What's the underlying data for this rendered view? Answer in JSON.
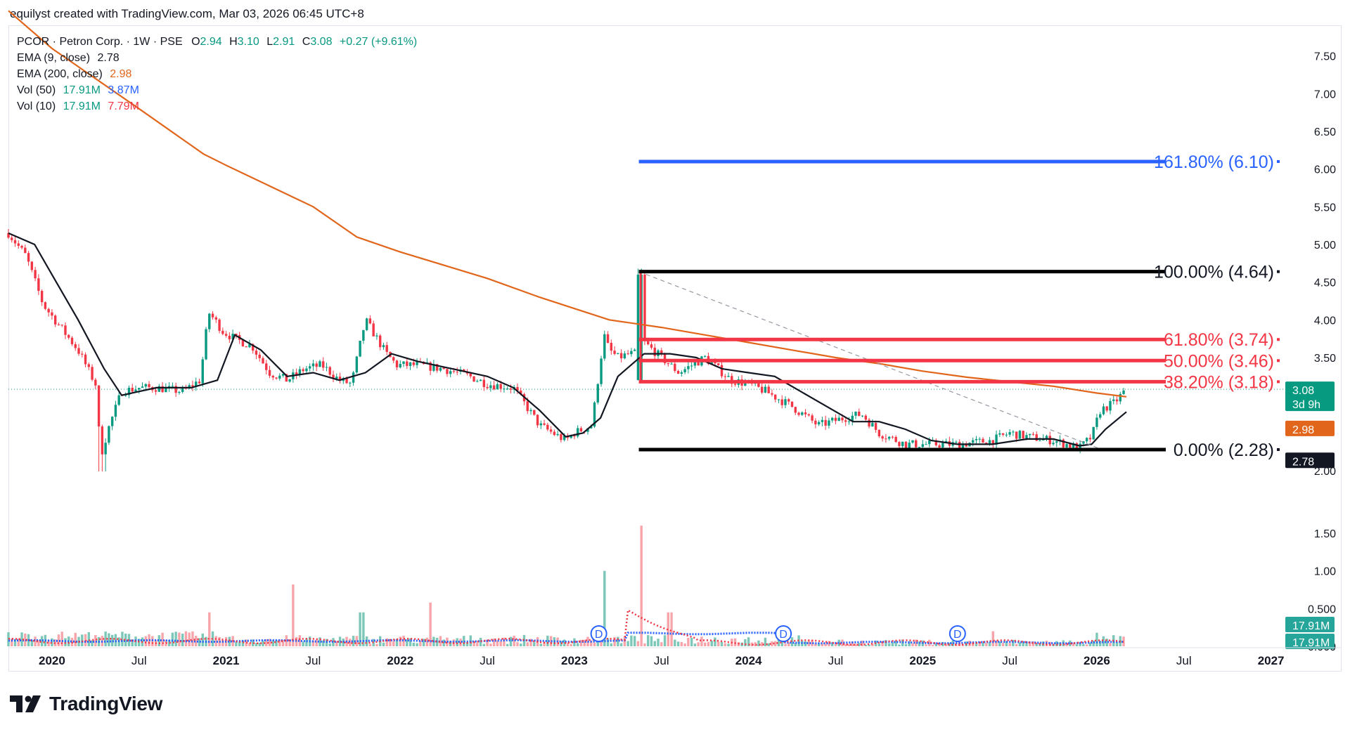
{
  "header": {
    "attribution": "equilyst created with TradingView.com, Mar 03, 2026 06:45 UTC+8"
  },
  "legend": {
    "symbol": "PCOR · Petron Corp. · 1W · PSE",
    "o_label": "O",
    "o_val": "2.94",
    "h_label": "H",
    "h_val": "3.10",
    "l_label": "L",
    "l_val": "2.91",
    "c_label": "C",
    "c_val": "3.08",
    "change": "+0.27 (+9.61%)",
    "ema9_label": "EMA (9, close)",
    "ema9_val": "2.78",
    "ema200_label": "EMA (200, close)",
    "ema200_val": "2.98",
    "vol50_label": "Vol (50)",
    "vol50_a": "17.91M",
    "vol50_b": "3.87M",
    "vol10_label": "Vol (10)",
    "vol10_a": "17.91M",
    "vol10_b": "7.79M"
  },
  "price_axis": {
    "ticks": [
      "7.50",
      "7.00",
      "6.50",
      "6.00",
      "5.50",
      "5.00",
      "4.50",
      "4.00",
      "3.50",
      "2.00",
      "1.50",
      "1.00",
      "0.500",
      "0.000"
    ],
    "tick_values": [
      7.5,
      7.0,
      6.5,
      6.0,
      5.5,
      5.0,
      4.5,
      4.0,
      3.5,
      2.0,
      1.5,
      1.0,
      0.5,
      0.0
    ]
  },
  "badges": {
    "price": "3.08",
    "countdown": "3d 9h",
    "ema200": "2.98",
    "ema9": "2.78",
    "vol_a": "17.91M",
    "vol_b": "17.91M"
  },
  "time_axis": {
    "labels": [
      "2020",
      "Jul",
      "2021",
      "Jul",
      "2022",
      "Jul",
      "2023",
      "Jul",
      "2024",
      "Jul",
      "2025",
      "Jul",
      "2026",
      "Jul",
      "2027"
    ],
    "bold": [
      true,
      false,
      true,
      false,
      true,
      false,
      true,
      false,
      true,
      false,
      true,
      false,
      true,
      false,
      true
    ],
    "dates": [
      2020.0,
      2020.5,
      2021.0,
      2021.5,
      2022.0,
      2022.5,
      2023.0,
      2023.5,
      2024.0,
      2024.5,
      2025.0,
      2025.5,
      2026.0,
      2026.5,
      2027.0
    ]
  },
  "fib_levels": [
    {
      "label": "161.80% (6.10)",
      "value": 6.1,
      "color": "#2962ff"
    },
    {
      "label": "100.00% (4.64)",
      "value": 4.64,
      "color": "#000000"
    },
    {
      "label": "61.80% (3.74)",
      "value": 3.74,
      "color": "#f23645"
    },
    {
      "label": "50.00% (3.46)",
      "value": 3.46,
      "color": "#f23645"
    },
    {
      "label": "38.20% (3.18)",
      "value": 3.18,
      "color": "#f23645"
    },
    {
      "label": "0.00% (2.28)",
      "value": 2.28,
      "color": "#000000"
    }
  ],
  "dividend_markers": {
    "label": "D",
    "dates": [
      2023.14,
      2024.2,
      2025.2
    ]
  },
  "brand": {
    "name": "TradingView"
  },
  "colors": {
    "up": "#089981",
    "down": "#f23645",
    "ema9": "#131722",
    "ema200": "#e1661c",
    "vol50": "#2962ff",
    "vol10": "#f23645",
    "fib_blue": "#2962ff"
  },
  "chart_data": {
    "type": "candlestick",
    "title": "PCOR · Petron Corp. · 1W · PSE",
    "interval": "1W",
    "last_bar": {
      "open": 2.94,
      "high": 3.1,
      "low": 2.91,
      "close": 3.08,
      "change": 0.27,
      "change_pct": 9.61
    },
    "price_range": [
      1.77,
      7.78
    ],
    "close_path": {
      "x": [
        2019.75,
        2019.85,
        2019.95,
        2020.05,
        2020.15,
        2020.25,
        2020.28,
        2020.33,
        2020.4,
        2020.5,
        2020.6,
        2020.75,
        2020.85,
        2020.9,
        2020.95,
        2020.98,
        2021.05,
        2021.15,
        2021.25,
        2021.35,
        2021.45,
        2021.55,
        2021.65,
        2021.72,
        2021.8,
        2021.88,
        2021.92,
        2021.98,
        2022.1,
        2022.25,
        2022.4,
        2022.5,
        2022.65,
        2022.8,
        2022.95,
        2023.0,
        2023.1,
        2023.17,
        2023.2,
        2023.25,
        2023.32,
        2023.38,
        2023.4,
        2023.5,
        2023.6,
        2023.75,
        2023.9,
        2024.0,
        2024.1,
        2024.25,
        2024.4,
        2024.55,
        2024.65,
        2024.75,
        2024.9,
        2025.0,
        2025.2,
        2025.4,
        2025.5,
        2025.6,
        2025.75,
        2025.9,
        2025.97,
        2026.02,
        2026.1,
        2026.17
      ],
      "close": [
        5.15,
        4.85,
        4.2,
        3.9,
        3.6,
        3.15,
        2.2,
        2.6,
        3.05,
        3.1,
        3.1,
        3.05,
        3.2,
        4.1,
        3.95,
        3.85,
        3.75,
        3.65,
        3.3,
        3.2,
        3.35,
        3.4,
        3.2,
        3.15,
        4.0,
        3.7,
        3.55,
        3.4,
        3.4,
        3.35,
        3.25,
        3.15,
        3.1,
        2.6,
        2.4,
        2.5,
        2.6,
        3.8,
        3.6,
        3.5,
        3.55,
        3.55,
        3.7,
        3.5,
        3.3,
        3.5,
        3.2,
        3.15,
        3.05,
        2.85,
        2.6,
        2.7,
        2.75,
        2.5,
        2.35,
        2.35,
        2.35,
        2.4,
        2.5,
        2.45,
        2.4,
        2.3,
        2.45,
        2.8,
        2.9,
        3.08
      ]
    },
    "ema9": {
      "x": [
        2019.75,
        2019.9,
        2020.0,
        2020.15,
        2020.3,
        2020.4,
        2020.6,
        2020.8,
        2020.95,
        2021.05,
        2021.2,
        2021.35,
        2021.5,
        2021.65,
        2021.8,
        2021.95,
        2022.1,
        2022.3,
        2022.5,
        2022.65,
        2022.8,
        2022.95,
        2023.05,
        2023.15,
        2023.25,
        2023.4,
        2023.55,
        2023.7,
        2023.85,
        2024.0,
        2024.15,
        2024.3,
        2024.45,
        2024.6,
        2024.75,
        2024.9,
        2025.05,
        2025.2,
        2025.4,
        2025.6,
        2025.75,
        2025.9,
        2025.97,
        2026.05,
        2026.17
      ],
      "y": [
        5.15,
        5.0,
        4.6,
        4.0,
        3.35,
        3.0,
        3.1,
        3.1,
        3.2,
        3.8,
        3.6,
        3.25,
        3.3,
        3.2,
        3.3,
        3.55,
        3.45,
        3.35,
        3.25,
        3.1,
        2.8,
        2.45,
        2.5,
        2.7,
        3.25,
        3.55,
        3.55,
        3.5,
        3.35,
        3.3,
        3.25,
        3.05,
        2.85,
        2.65,
        2.65,
        2.55,
        2.4,
        2.35,
        2.35,
        2.42,
        2.42,
        2.33,
        2.35,
        2.55,
        2.78
      ]
    },
    "ema200": {
      "x": [
        2019.75,
        2020.0,
        2020.5,
        2020.87,
        2021.0,
        2021.5,
        2021.75,
        2022.0,
        2022.5,
        2022.8,
        2023.0,
        2023.2,
        2023.5,
        2023.75,
        2024.0,
        2024.25,
        2024.5,
        2024.75,
        2025.0,
        2025.25,
        2025.5,
        2025.75,
        2026.0,
        2026.17
      ],
      "y": [
        8.1,
        7.6,
        6.8,
        6.2,
        6.05,
        5.5,
        5.1,
        4.9,
        4.55,
        4.3,
        4.15,
        4.0,
        3.9,
        3.8,
        3.7,
        3.6,
        3.5,
        3.42,
        3.32,
        3.24,
        3.18,
        3.12,
        3.03,
        2.98
      ]
    },
    "volume": {
      "unit": "M",
      "series": [
        {
          "name": "Vol (50)",
          "value": 17.91
        },
        {
          "name": "Vol (10)",
          "value": 17.91
        }
      ],
      "spikes_x": [
        2020.25,
        2020.9,
        2021.38,
        2021.78,
        2022.17,
        2023.17,
        2023.38,
        2023.55,
        2024.25,
        2025.4,
        2026.0,
        2026.17
      ],
      "spikes_y": [
        0.15,
        0.45,
        0.82,
        0.45,
        0.58,
        1.0,
        1.6,
        0.45,
        0.12,
        0.2,
        0.18,
        0.22
      ]
    }
  }
}
